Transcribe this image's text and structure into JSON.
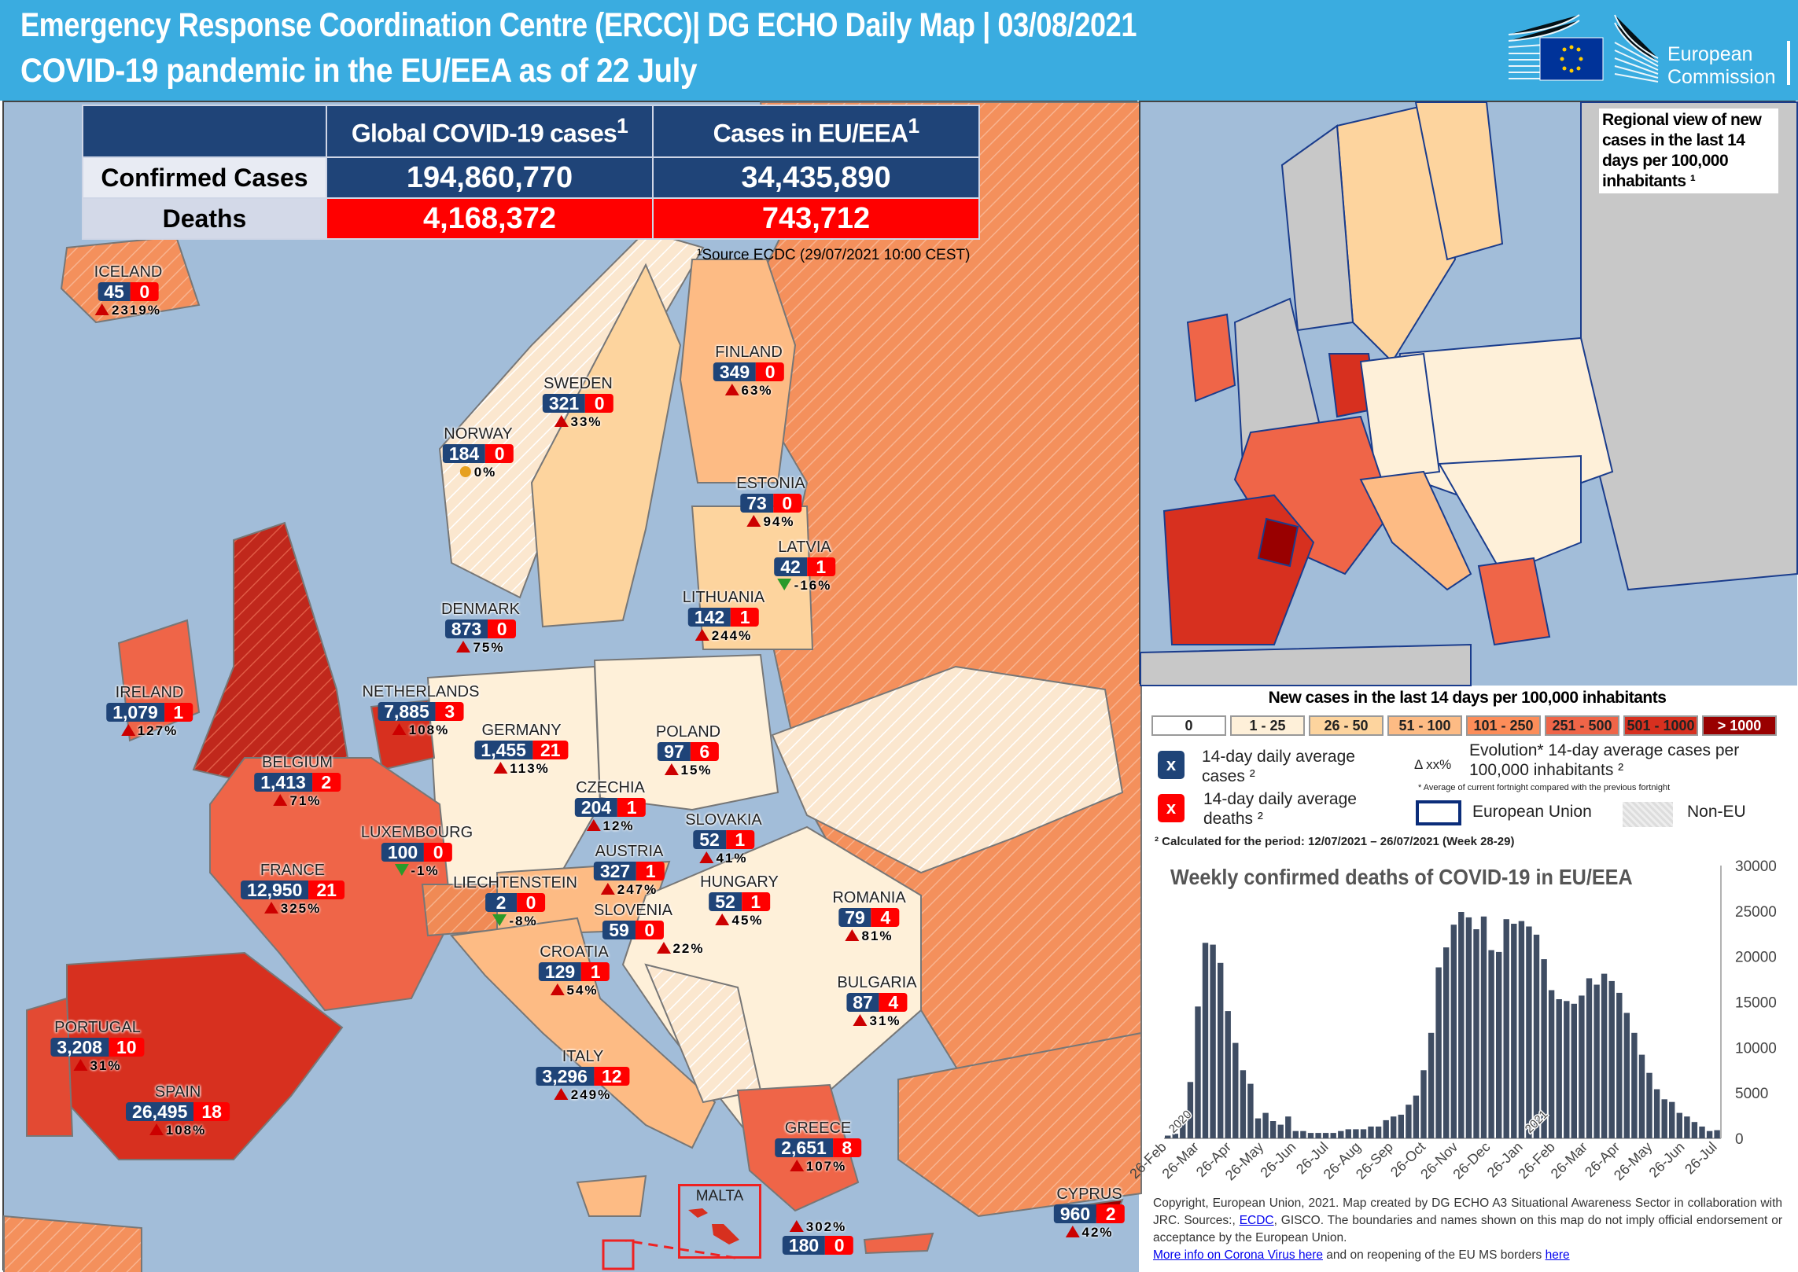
{
  "header": {
    "title_line1": "Emergency Response Coordination Centre (ERCC)| DG ECHO Daily Map  |  03/08/2021",
    "title_line2": "COVID-19 pandemic in the EU/EEA as of 22 July",
    "logo_text_1": "European",
    "logo_text_2": "Commission"
  },
  "stats": {
    "col1": "Global COVID-19 cases",
    "col2": "Cases in EU/EEA",
    "sup": "1",
    "row1_label": "Confirmed Cases",
    "row1_global": "194,860,770",
    "row1_eu": "34,435,890",
    "row2_label": "Deaths",
    "row2_global": "4,168,372",
    "row2_eu": "743,712",
    "source": "¹Source ECDC (29/07/2021 10:00 CEST)"
  },
  "countries": [
    {
      "name": "ICELAND",
      "cases": "45",
      "deaths": "0",
      "change": "2319%",
      "trend": "up"
    },
    {
      "name": "FINLAND",
      "cases": "349",
      "deaths": "0",
      "change": "63%",
      "trend": "up"
    },
    {
      "name": "SWEDEN",
      "cases": "321",
      "deaths": "0",
      "change": "33%",
      "trend": "up"
    },
    {
      "name": "NORWAY",
      "cases": "184",
      "deaths": "0",
      "change": "0%",
      "trend": "flat"
    },
    {
      "name": "ESTONIA",
      "cases": "73",
      "deaths": "0",
      "change": "94%",
      "trend": "up"
    },
    {
      "name": "LATVIA",
      "cases": "42",
      "deaths": "1",
      "change": "-16%",
      "trend": "down"
    },
    {
      "name": "LITHUANIA",
      "cases": "142",
      "deaths": "1",
      "change": "244%",
      "trend": "up"
    },
    {
      "name": "DENMARK",
      "cases": "873",
      "deaths": "0",
      "change": "75%",
      "trend": "up"
    },
    {
      "name": "NETHERLANDS",
      "cases": "7,885",
      "deaths": "3",
      "change": "108%",
      "trend": "up"
    },
    {
      "name": "IRELAND",
      "cases": "1,079",
      "deaths": "1",
      "change": "127%",
      "trend": "up"
    },
    {
      "name": "GERMANY",
      "cases": "1,455",
      "deaths": "21",
      "change": "113%",
      "trend": "up"
    },
    {
      "name": "POLAND",
      "cases": "97",
      "deaths": "6",
      "change": "15%",
      "trend": "up"
    },
    {
      "name": "BELGIUM",
      "cases": "1,413",
      "deaths": "2",
      "change": "71%",
      "trend": "up"
    },
    {
      "name": "CZECHIA",
      "cases": "204",
      "deaths": "1",
      "change": "12%",
      "trend": "up"
    },
    {
      "name": "SLOVAKIA",
      "cases": "52",
      "deaths": "1",
      "change": "41%",
      "trend": "up"
    },
    {
      "name": "LUXEMBOURG",
      "cases": "100",
      "deaths": "0",
      "change": "-1%",
      "trend": "down"
    },
    {
      "name": "AUSTRIA",
      "cases": "327",
      "deaths": "1",
      "change": "247%",
      "trend": "up"
    },
    {
      "name": "FRANCE",
      "cases": "12,950",
      "deaths": "21",
      "change": "325%",
      "trend": "up"
    },
    {
      "name": "LIECHTENSTEIN",
      "cases": "2",
      "deaths": "0",
      "change": "-8%",
      "trend": "down"
    },
    {
      "name": "HUNGARY",
      "cases": "52",
      "deaths": "1",
      "change": "45%",
      "trend": "up"
    },
    {
      "name": "ROMANIA",
      "cases": "79",
      "deaths": "4",
      "change": "81%",
      "trend": "up"
    },
    {
      "name": "SLOVENIA",
      "cases": "59",
      "deaths": "0",
      "change": "22%",
      "trend": "up"
    },
    {
      "name": "CROATIA",
      "cases": "129",
      "deaths": "1",
      "change": "54%",
      "trend": "up"
    },
    {
      "name": "BULGARIA",
      "cases": "87",
      "deaths": "4",
      "change": "31%",
      "trend": "up"
    },
    {
      "name": "PORTUGAL",
      "cases": "3,208",
      "deaths": "10",
      "change": "31%",
      "trend": "up"
    },
    {
      "name": "ITALY",
      "cases": "3,296",
      "deaths": "12",
      "change": "249%",
      "trend": "up"
    },
    {
      "name": "SPAIN",
      "cases": "26,495",
      "deaths": "18",
      "change": "108%",
      "trend": "up"
    },
    {
      "name": "GREECE",
      "cases": "2,651",
      "deaths": "8",
      "change": "107%",
      "trend": "up"
    },
    {
      "name": "CYPRUS",
      "cases": "960",
      "deaths": "2",
      "change": "42%",
      "trend": "up"
    }
  ],
  "malta": {
    "name": "MALTA",
    "cases": "180",
    "deaths": "0",
    "change": "302%",
    "trend": "up"
  },
  "regional_note": "Regional view of new cases in the last 14 days per 100,000 inhabitants ¹",
  "legend": {
    "title": "New cases in the last 14 days per 100,000 inhabitants",
    "scale": [
      {
        "label": "0",
        "color": "#ffffff"
      },
      {
        "label": "1 - 25",
        "color": "#fef0d9"
      },
      {
        "label": "26 - 50",
        "color": "#fdd49e"
      },
      {
        "label": "51 - 100",
        "color": "#fdbb84"
      },
      {
        "label": "101 - 250",
        "color": "#fc8d59"
      },
      {
        "label": "251 - 500",
        "color": "#ef6548"
      },
      {
        "label": "501 - 1000",
        "color": "#d7301f"
      },
      {
        "label": "> 1000",
        "color": "#990000"
      }
    ],
    "box_symbol": "x",
    "cases_label": "14-day daily average cases ²",
    "deaths_label": "14-day daily average deaths ²",
    "evolution_symbol": "Δ xx%",
    "evolution_label": "Evolution* 14-day average cases per 100,000 inhabitants ²",
    "evolution_note": "* Average of current fortnight compared with the previous fortnight",
    "eu_label": "European Union",
    "noneu_label": "Non-EU",
    "period_note": "² Calculated  for the period: 12/07/2021 – 26/07/2021 (Week 28-29)",
    "colors": {
      "cases": "#1f4478",
      "deaths": "#ff0000",
      "eu_border": "#0b2d7a"
    }
  },
  "chart_data": {
    "type": "bar",
    "title": "Weekly confirmed deaths of COVID-19 in EU/EEA",
    "xlabel": "",
    "ylabel": "",
    "ylim": [
      0,
      30000
    ],
    "yticks": [
      0,
      5000,
      10000,
      15000,
      20000,
      25000,
      30000
    ],
    "xtick_labels": [
      "26-Feb",
      "26-Mar",
      "26-Apr",
      "26-May",
      "26-Jun",
      "26-Jul",
      "26-Aug",
      "26-Sep",
      "26-Oct",
      "26-Nov",
      "26-Dec",
      "26-Jan",
      "26-Feb",
      "26-Mar",
      "26-Apr",
      "26-May",
      "26-Jun",
      "26-Jul"
    ],
    "year_labels": [
      "2020",
      "2021"
    ],
    "bar_color": "#3f4d63",
    "grid": false,
    "values": [
      300,
      500,
      2000,
      6200,
      14500,
      21500,
      21300,
      19300,
      14000,
      10500,
      7500,
      6000,
      2200,
      2800,
      1900,
      1500,
      2400,
      800,
      800,
      600,
      600,
      600,
      600,
      800,
      1000,
      1000,
      1000,
      1300,
      1300,
      2000,
      2400,
      2600,
      3700,
      4700,
      7500,
      11600,
      18800,
      21000,
      23500,
      24900,
      24300,
      23000,
      24400,
      20700,
      20500,
      24100,
      23600,
      23900,
      23300,
      22400,
      19700,
      16300,
      15300,
      15100,
      14800,
      15700,
      17600,
      16900,
      18100,
      17300,
      16000,
      13800,
      11600,
      9200,
      7200,
      5400,
      4300,
      4000,
      2800,
      2400,
      1800,
      1300,
      800,
      900
    ]
  },
  "footer": {
    "text1": "Copyright, European Union, 2021. Map created by DG ECHO A3 Situational Awareness Sector in collaboration with JRC. Sources:,",
    "link_ecdc": "ECDC",
    "text2": ", GISCO. The boundaries and names shown on this map do not imply official endorsement or acceptance  by the European Union.",
    "link_corona": "More info on Corona Virus here",
    "text3": " and on reopening of the EU MS borders ",
    "link_here": "here"
  }
}
